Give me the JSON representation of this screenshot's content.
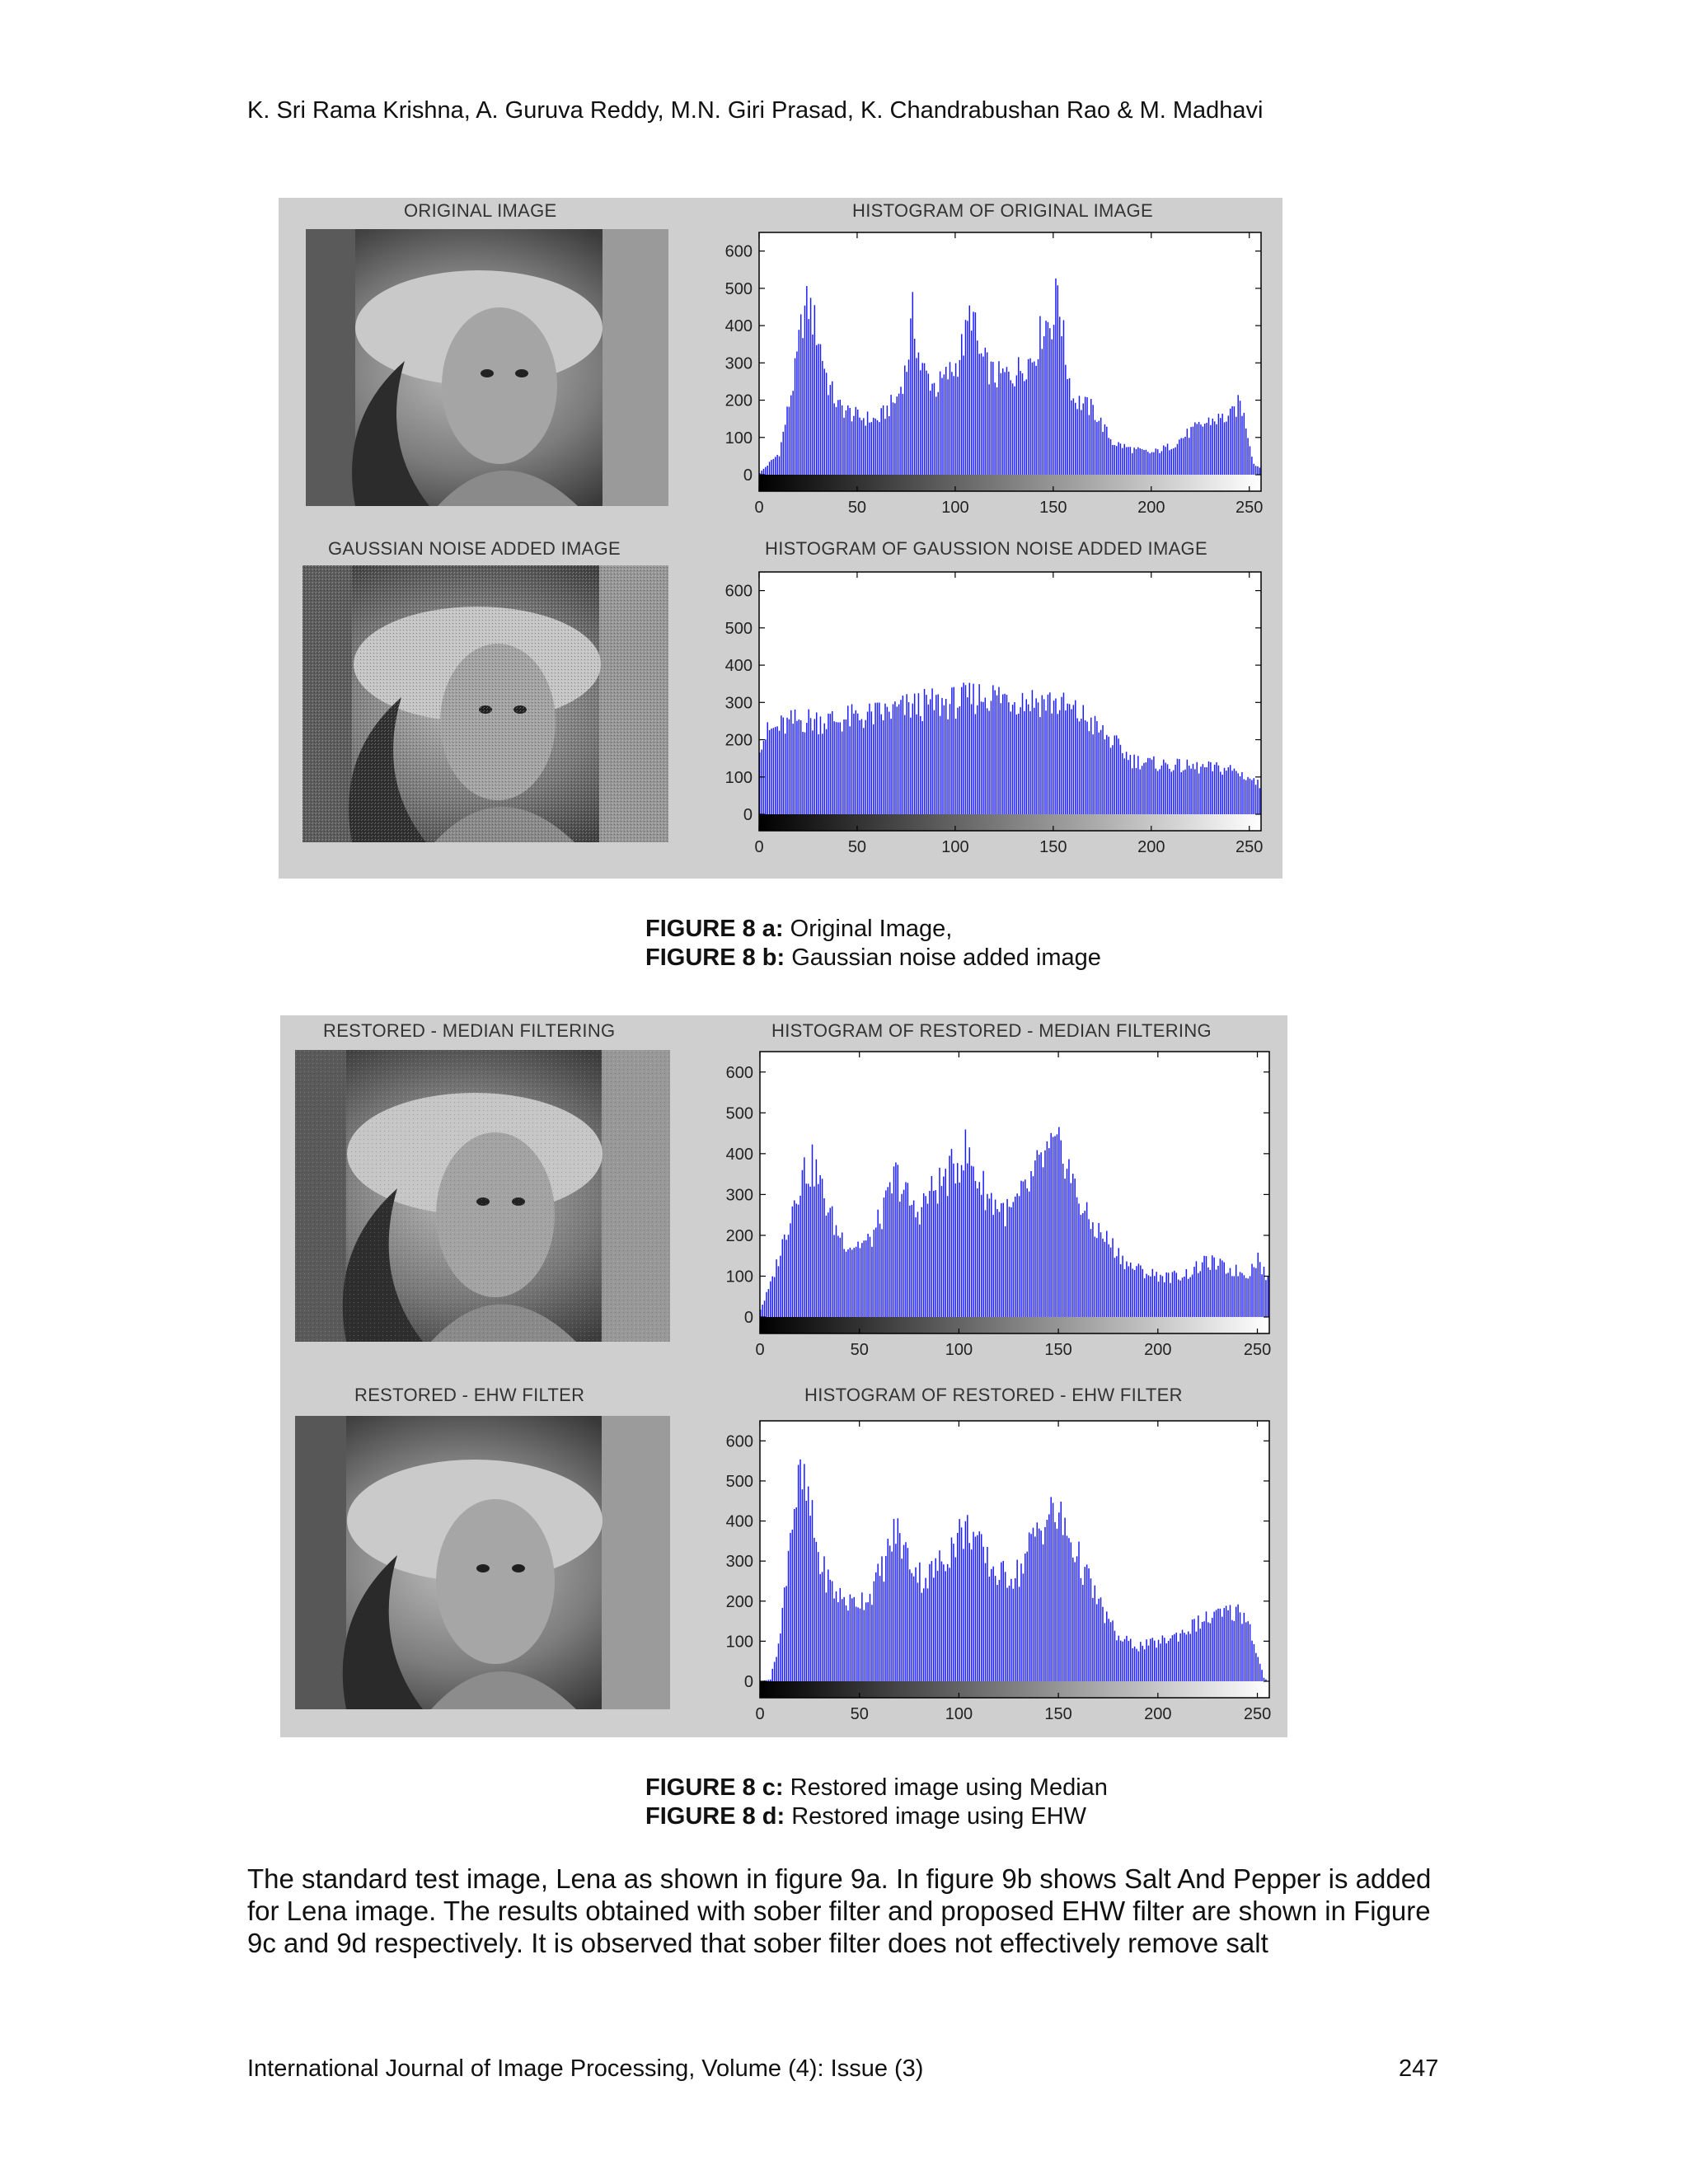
{
  "header": {
    "authors": "K. Sri Rama Krishna, A. Guruva Reddy,  M.N. Giri Prasad, K. Chandrabushan Rao & M. Madhavi"
  },
  "figure_top": {
    "row1": {
      "image_title": "ORIGINAL IMAGE",
      "hist_title": "HISTOGRAM OF ORIGINAL IMAGE"
    },
    "row2": {
      "image_title": "GAUSSIAN NOISE ADDED IMAGE",
      "hist_title": "HISTOGRAM OF GAUSSION NOISE ADDED IMAGE"
    },
    "caption_a_label": "FIGURE 8 a:",
    "caption_a_text": " Original Image,",
    "caption_b_label": "FIGURE 8 b:",
    "caption_b_text": " Gaussian noise added image"
  },
  "figure_bottom": {
    "row1": {
      "image_title": "RESTORED - MEDIAN FILTERING",
      "hist_title": "HISTOGRAM OF RESTORED - MEDIAN FILTERING"
    },
    "row2": {
      "image_title": "RESTORED - EHW FILTER",
      "hist_title": "HISTOGRAM OF RESTORED - EHW FILTER"
    },
    "caption_c_label": "FIGURE 8 c:",
    "caption_c_text": "  Restored image using Median",
    "caption_d_label": "FIGURE 8 d:",
    "caption_d_text": "  Restored image using EHW"
  },
  "body": {
    "paragraph": "The standard test image, Lena as shown in figure 9a. In figure 9b shows Salt And Pepper is added for Lena image. The results obtained with sober filter and proposed EHW filter are shown in Figure 9c and 9d respectively. It is observed that sober filter does not effectively remove salt"
  },
  "footer": {
    "journal": "International Journal of Image Processing, Volume (4): Issue (3)",
    "page_number": "247"
  },
  "colors": {
    "bar": "#1a1aff",
    "panel_bg": "#cfcfcf",
    "plot_bg": "#ffffff"
  },
  "chart_data": [
    {
      "type": "bar",
      "title": "HISTOGRAM OF ORIGINAL IMAGE",
      "xlim": [
        0,
        255
      ],
      "ylim": [
        0,
        650
      ],
      "xticks": [
        0,
        50,
        100,
        150,
        200,
        250
      ],
      "yticks": [
        0,
        100,
        200,
        300,
        400,
        500,
        600
      ],
      "profile": [
        [
          0,
          5
        ],
        [
          10,
          60
        ],
        [
          18,
          280
        ],
        [
          22,
          440
        ],
        [
          25,
          470
        ],
        [
          30,
          380
        ],
        [
          35,
          250
        ],
        [
          40,
          190
        ],
        [
          50,
          160
        ],
        [
          60,
          150
        ],
        [
          70,
          210
        ],
        [
          75,
          300
        ],
        [
          78,
          440
        ],
        [
          82,
          300
        ],
        [
          90,
          240
        ],
        [
          100,
          300
        ],
        [
          105,
          380
        ],
        [
          108,
          460
        ],
        [
          112,
          330
        ],
        [
          120,
          270
        ],
        [
          130,
          280
        ],
        [
          140,
          330
        ],
        [
          145,
          420
        ],
        [
          150,
          430
        ],
        [
          152,
          530
        ],
        [
          156,
          320
        ],
        [
          160,
          210
        ],
        [
          170,
          180
        ],
        [
          180,
          90
        ],
        [
          190,
          70
        ],
        [
          200,
          60
        ],
        [
          210,
          80
        ],
        [
          220,
          120
        ],
        [
          230,
          150
        ],
        [
          240,
          160
        ],
        [
          245,
          200
        ],
        [
          248,
          140
        ],
        [
          252,
          30
        ],
        [
          255,
          20
        ]
      ]
    },
    {
      "type": "bar",
      "title": "HISTOGRAM OF GAUSSION NOISE ADDED IMAGE",
      "xlim": [
        0,
        255
      ],
      "ylim": [
        0,
        650
      ],
      "xticks": [
        0,
        50,
        100,
        150,
        200,
        250
      ],
      "yticks": [
        0,
        100,
        200,
        300,
        400,
        500,
        600
      ],
      "profile": [
        [
          0,
          200
        ],
        [
          5,
          230
        ],
        [
          20,
          260
        ],
        [
          40,
          260
        ],
        [
          60,
          275
        ],
        [
          80,
          300
        ],
        [
          100,
          310
        ],
        [
          115,
          330
        ],
        [
          130,
          320
        ],
        [
          150,
          310
        ],
        [
          165,
          270
        ],
        [
          180,
          200
        ],
        [
          190,
          150
        ],
        [
          200,
          140
        ],
        [
          220,
          130
        ],
        [
          240,
          125
        ],
        [
          250,
          100
        ],
        [
          255,
          80
        ]
      ]
    },
    {
      "type": "bar",
      "title": "HISTOGRAM OF RESTORED - MEDIAN FILTERING",
      "xlim": [
        0,
        255
      ],
      "ylim": [
        0,
        650
      ],
      "xticks": [
        0,
        50,
        100,
        150,
        200,
        250
      ],
      "yticks": [
        0,
        100,
        200,
        300,
        400,
        500,
        600
      ],
      "profile": [
        [
          0,
          20
        ],
        [
          5,
          80
        ],
        [
          12,
          200
        ],
        [
          18,
          320
        ],
        [
          22,
          370
        ],
        [
          27,
          380
        ],
        [
          32,
          300
        ],
        [
          38,
          220
        ],
        [
          45,
          180
        ],
        [
          55,
          190
        ],
        [
          63,
          280
        ],
        [
          68,
          360
        ],
        [
          72,
          320
        ],
        [
          78,
          260
        ],
        [
          85,
          310
        ],
        [
          95,
          360
        ],
        [
          103,
          420
        ],
        [
          108,
          360
        ],
        [
          115,
          300
        ],
        [
          125,
          260
        ],
        [
          135,
          330
        ],
        [
          142,
          400
        ],
        [
          148,
          420
        ],
        [
          153,
          410
        ],
        [
          158,
          320
        ],
        [
          165,
          240
        ],
        [
          175,
          190
        ],
        [
          185,
          130
        ],
        [
          195,
          110
        ],
        [
          205,
          100
        ],
        [
          215,
          110
        ],
        [
          225,
          140
        ],
        [
          235,
          120
        ],
        [
          245,
          110
        ],
        [
          250,
          150
        ],
        [
          255,
          90
        ]
      ]
    },
    {
      "type": "bar",
      "title": "HISTOGRAM OF RESTORED - EHW FILTER",
      "xlim": [
        0,
        255
      ],
      "ylim": [
        0,
        650
      ],
      "xticks": [
        0,
        50,
        100,
        150,
        200,
        250
      ],
      "yticks": [
        0,
        100,
        200,
        300,
        400,
        500,
        600
      ],
      "profile": [
        [
          0,
          0
        ],
        [
          5,
          5
        ],
        [
          10,
          120
        ],
        [
          15,
          400
        ],
        [
          20,
          520
        ],
        [
          24,
          460
        ],
        [
          30,
          300
        ],
        [
          37,
          230
        ],
        [
          45,
          200
        ],
        [
          55,
          220
        ],
        [
          62,
          300
        ],
        [
          68,
          390
        ],
        [
          74,
          320
        ],
        [
          82,
          260
        ],
        [
          90,
          300
        ],
        [
          100,
          380
        ],
        [
          106,
          390
        ],
        [
          112,
          320
        ],
        [
          120,
          270
        ],
        [
          130,
          280
        ],
        [
          138,
          380
        ],
        [
          145,
          430
        ],
        [
          150,
          420
        ],
        [
          156,
          360
        ],
        [
          162,
          290
        ],
        [
          170,
          200
        ],
        [
          180,
          110
        ],
        [
          190,
          90
        ],
        [
          200,
          100
        ],
        [
          210,
          120
        ],
        [
          220,
          150
        ],
        [
          230,
          170
        ],
        [
          240,
          180
        ],
        [
          245,
          160
        ],
        [
          250,
          60
        ],
        [
          253,
          10
        ],
        [
          255,
          0
        ]
      ]
    }
  ]
}
